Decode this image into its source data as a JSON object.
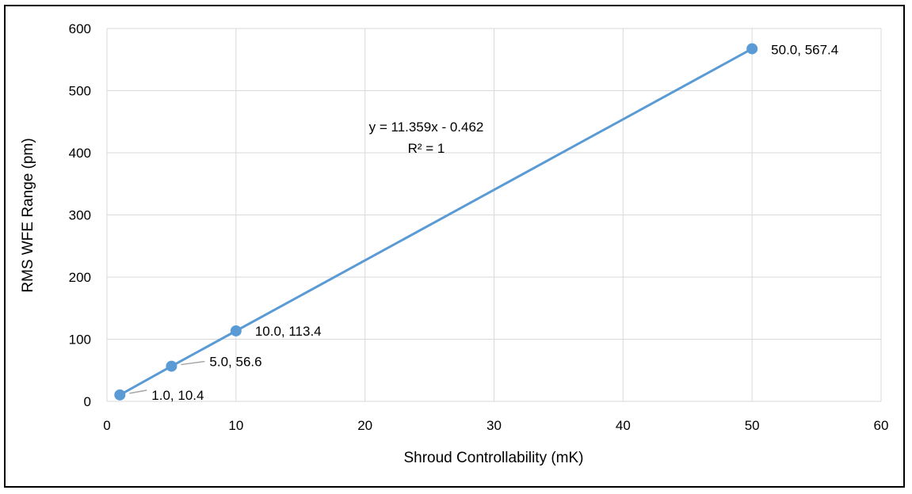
{
  "chart_data": {
    "type": "scatter",
    "title": "",
    "xlabel": "Shroud Controllability (mK)",
    "ylabel": "RMS WFE Range (pm)",
    "xlim": [
      0,
      60
    ],
    "ylim": [
      0,
      600
    ],
    "x_ticks": [
      0,
      10,
      20,
      30,
      40,
      50,
      60
    ],
    "y_ticks": [
      0,
      100,
      200,
      300,
      400,
      500,
      600
    ],
    "grid": true,
    "legend": "none",
    "series": [
      {
        "color": "#5b9bd5",
        "line": true,
        "x": [
          1.0,
          5.0,
          10.0,
          50.0
        ],
        "y": [
          10.4,
          56.6,
          113.4,
          567.4
        ],
        "labels": [
          "1.0, 10.4",
          "5.0, 56.6",
          "10.0, 113.4",
          "50.0, 567.4"
        ]
      }
    ],
    "trendline": {
      "equation": "y = 11.359x - 0.462",
      "r_squared": "R² = 1"
    }
  }
}
